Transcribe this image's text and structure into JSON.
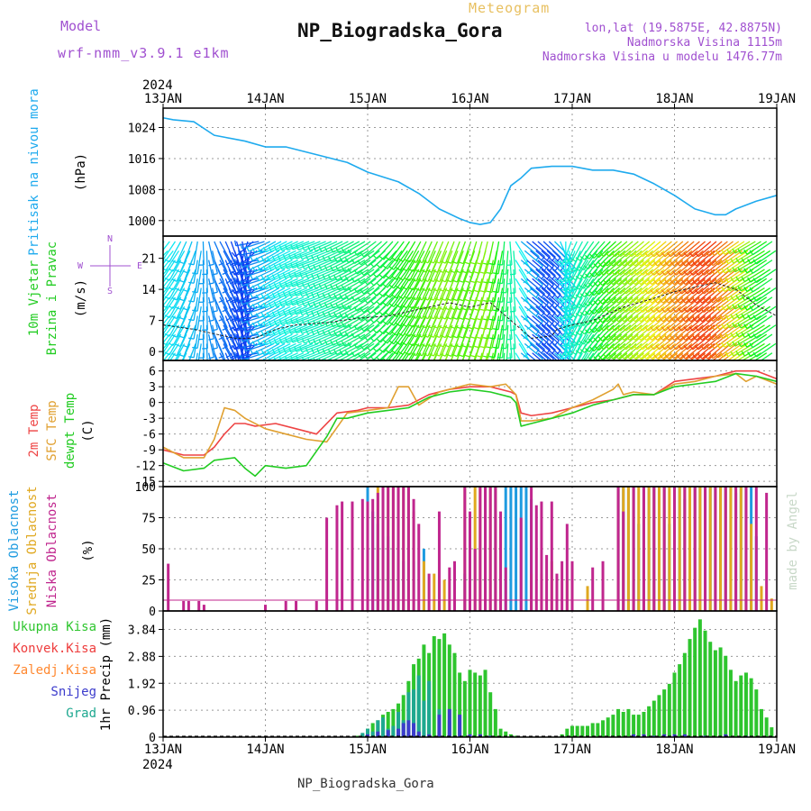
{
  "header": {
    "model_label": "Model",
    "model_name": "wrf-nmm_v3.9.1 e1km",
    "product": "Meteogram",
    "station": "NP_Biogradska_Gora",
    "lonlat": "lon,lat (19.5875E, 42.8875N)",
    "elevation": "Nadmorska Visina 1115m",
    "model_elevation": "Nadmorska Visina u modelu 1476.77m",
    "footer_station": "NP_Biogradska_Gora",
    "credit": "made by Angel"
  },
  "colors": {
    "pressure": "#1eaaee",
    "temp2m": "#ee4444",
    "sfc": "#e0a030",
    "dewpt": "#22cc22",
    "high_cloud": "#1e9be0",
    "mid_cloud": "#e0a820",
    "low_cloud": "#c0268e",
    "precip_total": "#2ec52e",
    "precip_conv": "#ee3c3c",
    "precip_frozen": "#ff8830",
    "snow": "#3c3ccc",
    "graupel": "#1ea890",
    "title_gold": "#e8c060",
    "purple": "#a050d0"
  },
  "chart_data": [
    {
      "id": "pressure",
      "type": "line",
      "ylabel_lines": [
        "Pritisak na nivou mora",
        "(hPa)"
      ],
      "yticks": [
        1000,
        1008,
        1016,
        1024
      ],
      "ylim": [
        996,
        1029
      ],
      "grid": true,
      "series": [
        {
          "x": [
            0,
            0.1,
            0.3,
            0.5,
            0.6,
            0.8,
            1.0,
            1.2,
            1.5,
            1.8,
            2.0,
            2.3,
            2.5,
            2.7,
            2.9,
            3.0,
            3.1,
            3.2,
            3.3,
            3.4,
            3.5,
            3.6,
            3.8,
            4.0,
            4.2,
            4.4,
            4.6,
            4.8,
            5.0,
            5.2,
            5.4,
            5.5,
            5.6,
            5.8,
            6.0
          ],
          "values": [
            1026.5,
            1026,
            1025.5,
            1022,
            1021.5,
            1020.5,
            1019,
            1019,
            1017,
            1015,
            1012.5,
            1010,
            1007,
            1003,
            1000.5,
            999.5,
            999,
            999.5,
            1003,
            1009,
            1011,
            1013.5,
            1014,
            1014,
            1013,
            1013,
            1012,
            1009.5,
            1006.5,
            1003,
            1001.5,
            1001.5,
            1003,
            1005,
            1006.5
          ]
        }
      ]
    },
    {
      "id": "wind",
      "type": "barbs",
      "ylabel_lines": [
        "10m Vjetar",
        "Brzina i Pravac",
        "(m/s)"
      ],
      "compass": [
        "N",
        "E",
        "W",
        "S"
      ],
      "yticks": [
        0,
        7,
        14,
        21
      ],
      "ylim": [
        -2,
        26
      ],
      "speed_x": [
        0,
        0.3,
        0.5,
        0.7,
        0.9,
        1.1,
        1.3,
        1.6,
        1.9,
        2.2,
        2.5,
        2.8,
        3.0,
        3.2,
        3.4,
        3.6,
        3.8,
        3.85,
        4.0,
        4.2,
        4.5,
        4.8,
        5.0,
        5.2,
        5.4,
        5.6,
        5.8,
        6.0
      ],
      "speed": [
        6,
        5,
        4,
        3,
        3,
        5,
        6,
        6.5,
        7.5,
        8,
        9.5,
        11,
        10,
        11,
        7,
        3,
        3.5,
        5,
        6,
        7,
        10,
        12,
        13.5,
        14.5,
        15.5,
        14,
        10.5,
        8
      ],
      "dir_x": [
        0,
        0.3,
        0.55,
        0.8,
        0.95,
        1.1,
        1.5,
        2.0,
        2.3,
        2.6,
        3.0,
        3.3,
        3.4,
        3.5,
        3.6,
        3.85,
        4.0,
        4.3,
        4.5,
        4.8,
        5.0,
        5.5,
        5.8,
        6.0
      ],
      "dir": [
        225,
        200,
        150,
        170,
        260,
        240,
        250,
        240,
        220,
        205,
        200,
        190,
        180,
        130,
        130,
        135,
        200,
        220,
        230,
        230,
        230,
        230,
        240,
        235
      ]
    },
    {
      "id": "temperature",
      "type": "line",
      "ylabel_lines": [
        "2m Temp",
        "SFC Temp",
        "dewpt Temp",
        "(C)"
      ],
      "yticks": [
        -15,
        -12,
        -9,
        -6,
        -3,
        0,
        3,
        6
      ],
      "ylim": [
        -16,
        8
      ],
      "grid": true,
      "series": [
        {
          "key": "temp2m",
          "x": [
            0,
            0.2,
            0.4,
            0.5,
            0.6,
            0.7,
            0.8,
            0.9,
            1.1,
            1.3,
            1.5,
            1.7,
            1.9,
            2.0,
            2.2,
            2.4,
            2.6,
            2.8,
            3.0,
            3.2,
            3.4,
            3.45,
            3.5,
            3.6,
            3.8,
            4.0,
            4.2,
            4.4,
            4.6,
            4.8,
            5.0,
            5.2,
            5.4,
            5.6,
            5.8,
            6.0
          ],
          "values": [
            -9,
            -10,
            -10,
            -8.5,
            -6,
            -4,
            -4,
            -4.5,
            -4,
            -5,
            -6,
            -2,
            -1.5,
            -1,
            -1,
            -0.5,
            1.5,
            2.5,
            3,
            3,
            2,
            1.5,
            -2,
            -2.5,
            -2,
            -1,
            0,
            0.5,
            1.5,
            1.5,
            4,
            4.5,
            5,
            6,
            6,
            4.5
          ]
        },
        {
          "key": "sfc",
          "x": [
            0,
            0.2,
            0.4,
            0.5,
            0.6,
            0.7,
            0.8,
            1.0,
            1.2,
            1.4,
            1.6,
            1.8,
            2.0,
            2.2,
            2.3,
            2.4,
            2.5,
            2.7,
            2.9,
            3.0,
            3.2,
            3.35,
            3.45,
            3.5,
            3.6,
            3.8,
            4.0,
            4.2,
            4.4,
            4.45,
            4.5,
            4.6,
            4.8,
            5.0,
            5.2,
            5.4,
            5.6,
            5.7,
            5.8,
            6.0
          ],
          "values": [
            -8.5,
            -10.5,
            -10.5,
            -7,
            -1,
            -1.5,
            -3,
            -5,
            -6,
            -7,
            -7.5,
            -2,
            -1.5,
            -1,
            3,
            3,
            -0.5,
            2,
            3,
            3.5,
            3,
            3.5,
            1.5,
            -3.5,
            -3.5,
            -3,
            -1,
            0.5,
            2.5,
            3.5,
            1.5,
            2,
            1.5,
            3.5,
            4,
            5,
            5.5,
            4,
            5,
            3.5
          ]
        },
        {
          "key": "dewpt",
          "x": [
            0,
            0.2,
            0.4,
            0.5,
            0.7,
            0.8,
            0.9,
            1.0,
            1.2,
            1.4,
            1.6,
            1.7,
            1.8,
            2.0,
            2.2,
            2.4,
            2.6,
            2.8,
            3.0,
            3.2,
            3.4,
            3.45,
            3.5,
            3.6,
            3.8,
            4.0,
            4.2,
            4.4,
            4.6,
            4.8,
            5.0,
            5.2,
            5.4,
            5.6,
            5.8,
            6.0
          ],
          "values": [
            -11.5,
            -13,
            -12.5,
            -11,
            -10.5,
            -12.5,
            -14,
            -12,
            -12.5,
            -12,
            -6.5,
            -3,
            -3,
            -2,
            -1.5,
            -1,
            1,
            2,
            2.5,
            2,
            1,
            0,
            -4.5,
            -4,
            -3,
            -2,
            -0.5,
            0.5,
            1.5,
            1.5,
            3,
            3.5,
            4,
            5.5,
            5,
            4
          ]
        }
      ]
    },
    {
      "id": "clouds",
      "type": "bar",
      "ylabel_lines": [
        "Visoka Oblacnost",
        "Srednja Oblacnost",
        "Niska Oblacnost",
        "(%)"
      ],
      "yticks": [
        0,
        25,
        50,
        75,
        100
      ],
      "ylim": [
        0,
        100
      ],
      "grid": true,
      "series": [
        {
          "key": "high_cloud",
          "x": [
            2.0,
            2.05,
            2.1,
            2.15,
            2.2,
            2.25,
            2.35,
            2.45,
            2.55,
            2.7,
            2.95,
            3.15,
            3.25,
            3.35,
            3.4,
            3.45,
            3.5,
            3.55,
            3.6,
            4.45,
            4.5,
            4.55,
            4.6,
            4.65,
            4.7,
            4.75,
            4.8,
            4.85,
            4.9,
            4.95,
            5.0,
            5.05,
            5.1,
            5.15,
            5.2,
            5.25,
            5.3,
            5.35,
            5.4,
            5.45,
            5.5,
            5.55,
            5.6,
            5.65,
            5.7,
            5.75,
            5.8
          ],
          "values": [
            100,
            80,
            70,
            60,
            60,
            50,
            40,
            40,
            50,
            25,
            30,
            100,
            100,
            100,
            100,
            100,
            100,
            100,
            90,
            100,
            100,
            100,
            100,
            70,
            100,
            100,
            100,
            100,
            100,
            70,
            100,
            100,
            90,
            100,
            100,
            100,
            100,
            100,
            100,
            100,
            100,
            100,
            95,
            100,
            100,
            100,
            60
          ]
        },
        {
          "key": "mid_cloud",
          "x": [
            2.1,
            2.15,
            2.2,
            2.25,
            2.3,
            2.35,
            2.4,
            2.45,
            2.55,
            2.65,
            2.75,
            2.95,
            3.05,
            3.1,
            3.15,
            3.2,
            3.25,
            3.3,
            3.6,
            3.7,
            3.8,
            3.95,
            4.15,
            4.45,
            4.5,
            4.55,
            4.6,
            4.65,
            4.7,
            4.75,
            4.8,
            4.85,
            4.9,
            4.95,
            5.0,
            5.05,
            5.1,
            5.15,
            5.2,
            5.25,
            5.3,
            5.35,
            5.4,
            5.45,
            5.5,
            5.55,
            5.6,
            5.65,
            5.7,
            5.75,
            5.85,
            5.95
          ],
          "values": [
            100,
            100,
            100,
            100,
            100,
            100,
            100,
            80,
            40,
            30,
            25,
            100,
            100,
            100,
            100,
            100,
            100,
            70,
            30,
            30,
            40,
            25,
            20,
            100,
            100,
            100,
            100,
            100,
            100,
            100,
            100,
            100,
            100,
            100,
            100,
            100,
            100,
            100,
            100,
            100,
            100,
            100,
            100,
            100,
            100,
            100,
            100,
            100,
            100,
            70,
            20,
            10
          ]
        },
        {
          "key": "low_cloud",
          "x": [
            0.05,
            0.2,
            0.25,
            0.35,
            0.4,
            1.0,
            1.2,
            1.3,
            1.5,
            1.6,
            1.7,
            1.75,
            1.85,
            1.95,
            2.0,
            2.05,
            2.1,
            2.15,
            2.2,
            2.25,
            2.3,
            2.35,
            2.4,
            2.45,
            2.5,
            2.6,
            2.7,
            2.8,
            2.85,
            2.95,
            3.0,
            3.05,
            3.1,
            3.15,
            3.2,
            3.25,
            3.3,
            3.35,
            3.5,
            3.6,
            3.65,
            3.7,
            3.75,
            3.8,
            3.85,
            3.9,
            3.95,
            4.0,
            4.2,
            4.3,
            4.45,
            4.5,
            4.6,
            4.7,
            4.8,
            4.9,
            5.0,
            5.1,
            5.2,
            5.3,
            5.4,
            5.5,
            5.6,
            5.7,
            5.8,
            5.9
          ],
          "values": [
            38,
            8,
            8,
            8,
            5,
            5,
            8,
            8,
            8,
            75,
            85,
            88,
            88,
            90,
            88,
            90,
            95,
            100,
            100,
            100,
            100,
            100,
            100,
            90,
            70,
            30,
            80,
            35,
            40,
            100,
            80,
            50,
            100,
            100,
            100,
            100,
            80,
            35,
            75,
            100,
            85,
            88,
            45,
            88,
            30,
            40,
            70,
            40,
            35,
            40,
            100,
            80,
            100,
            100,
            100,
            100,
            100,
            100,
            100,
            100,
            100,
            100,
            100,
            100,
            100,
            95
          ]
        }
      ]
    },
    {
      "id": "precip",
      "type": "bar",
      "ylabel_lines": [
        "1hr Precip (mm)"
      ],
      "legend": [
        "Ukupna Kisa",
        "Konvek.Kisa",
        "Zaledj.Kisa",
        "Snijeg",
        "Grad"
      ],
      "yticks": [
        0,
        0.96,
        1.92,
        2.88,
        3.84
      ],
      "ylim": [
        0,
        4.5
      ],
      "grid": true,
      "series": [
        {
          "key": "precip_total",
          "x": [
            1.9,
            1.95,
            2.0,
            2.05,
            2.1,
            2.15,
            2.2,
            2.25,
            2.3,
            2.35,
            2.4,
            2.45,
            2.5,
            2.55,
            2.6,
            2.65,
            2.7,
            2.75,
            2.8,
            2.85,
            2.9,
            2.95,
            3.0,
            3.05,
            3.1,
            3.15,
            3.2,
            3.25,
            3.3,
            3.35,
            3.4,
            3.45,
            3.9,
            3.95,
            4.0,
            4.05,
            4.1,
            4.15,
            4.2,
            4.25,
            4.3,
            4.35,
            4.4,
            4.45,
            4.5,
            4.55,
            4.6,
            4.65,
            4.7,
            4.75,
            4.8,
            4.85,
            4.9,
            4.95,
            5.0,
            5.05,
            5.1,
            5.15,
            5.2,
            5.25,
            5.3,
            5.35,
            5.4,
            5.45,
            5.5,
            5.55,
            5.6,
            5.65,
            5.7,
            5.75,
            5.8,
            5.85,
            5.9,
            5.95
          ],
          "values": [
            0.05,
            0.1,
            0.3,
            0.5,
            0.6,
            0.8,
            0.9,
            1.0,
            1.2,
            1.5,
            2.0,
            2.6,
            2.8,
            3.3,
            3.0,
            3.6,
            3.5,
            3.7,
            3.3,
            3.0,
            2.3,
            2.0,
            2.4,
            2.3,
            2.2,
            2.4,
            1.6,
            1.0,
            0.3,
            0.2,
            0.1,
            0.05,
            0.1,
            0.3,
            0.4,
            0.4,
            0.4,
            0.4,
            0.5,
            0.5,
            0.6,
            0.7,
            0.8,
            1.0,
            0.9,
            1.0,
            0.8,
            0.8,
            0.9,
            1.1,
            1.3,
            1.5,
            1.7,
            1.9,
            2.3,
            2.6,
            3.0,
            3.5,
            3.9,
            4.2,
            3.8,
            3.4,
            3.1,
            3.2,
            2.9,
            2.4,
            2.0,
            2.2,
            2.3,
            2.1,
            1.7,
            1.0,
            0.7,
            0.35
          ]
        },
        {
          "key": "graupel",
          "x": [
            1.95,
            2.0,
            2.05,
            2.1,
            2.15,
            2.2,
            2.25,
            2.3,
            2.35,
            2.4,
            2.45,
            2.5,
            2.55,
            2.6,
            2.7,
            2.8
          ],
          "values": [
            0.15,
            0.3,
            0.2,
            0.6,
            0.7,
            0.3,
            0.4,
            0.9,
            0.6,
            1.6,
            1.7,
            2.2,
            1.3,
            2.0,
            1.0,
            0.6
          ]
        },
        {
          "key": "snow",
          "x": [
            2.0,
            2.1,
            2.2,
            2.3,
            2.35,
            2.4,
            2.45,
            2.5,
            2.6,
            2.7,
            2.8,
            2.9,
            3.0,
            3.1,
            3.2,
            4.6,
            4.7,
            4.8,
            4.9,
            5.0,
            5.1,
            5.3,
            5.5,
            5.7
          ],
          "values": [
            0.1,
            0.2,
            0.25,
            0.3,
            0.5,
            0.6,
            0.5,
            0.2,
            0.1,
            0.8,
            1.0,
            0.8,
            0.1,
            0.1,
            0.05,
            0.1,
            0.1,
            0.05,
            0.1,
            0.1,
            0.1,
            0.05,
            0.1,
            0.05
          ]
        }
      ]
    }
  ],
  "x_axis": {
    "year": "2024",
    "day_labels": [
      "13JAN",
      "14JAN",
      "15JAN",
      "16JAN",
      "17JAN",
      "18JAN",
      "19JAN"
    ]
  }
}
